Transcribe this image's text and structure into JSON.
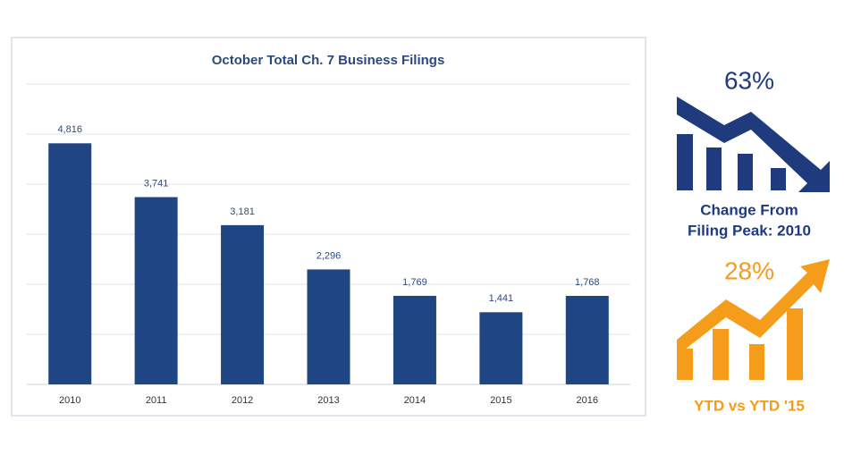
{
  "chart_data": {
    "type": "bar",
    "title": "October Total Ch. 7 Business Filings",
    "categories": [
      "2010",
      "2011",
      "2012",
      "2013",
      "2014",
      "2015",
      "2016"
    ],
    "values": [
      4816,
      3741,
      3181,
      2296,
      1769,
      1441,
      1768
    ],
    "value_labels": [
      "4,816",
      "3,741",
      "3,181",
      "2,296",
      "1,769",
      "1,441",
      "1,768"
    ],
    "color": "#1f4682",
    "ylim": [
      0,
      6000
    ],
    "yticks": [
      0,
      1000,
      2000,
      3000,
      4000,
      5000,
      6000
    ],
    "grid": true
  },
  "callouts": [
    {
      "value": "63%",
      "label": [
        "Change From",
        "Filing Peak: 2010"
      ],
      "color": "#1f3b7e"
    },
    {
      "value": "28%",
      "label": [
        "YTD vs YTD '15"
      ],
      "color": "#f59c1a"
    }
  ]
}
